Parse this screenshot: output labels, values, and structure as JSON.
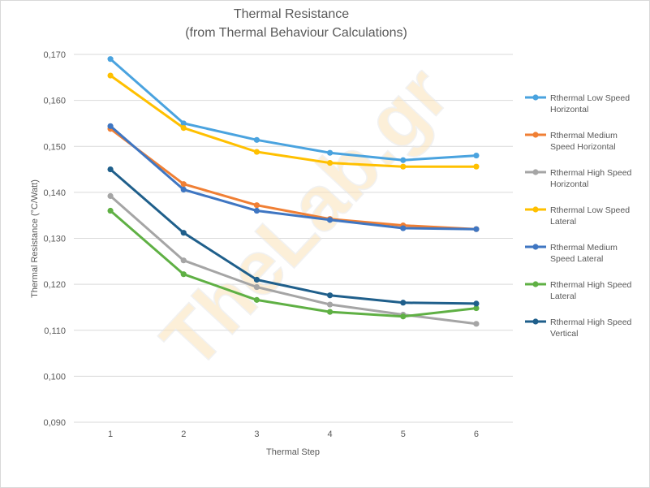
{
  "chart_data": {
    "type": "line",
    "title": "Thermal Resistance",
    "subtitle": "(from Thermal Behaviour Calculations)",
    "xlabel": "Thermal Step",
    "ylabel": "Thermal Resistance (°C/Watt)",
    "x": [
      1,
      2,
      3,
      4,
      5,
      6
    ],
    "x_tick_labels": [
      "1",
      "2",
      "3",
      "4",
      "5",
      "6"
    ],
    "ylim": [
      0.09,
      0.17
    ],
    "y_ticks": [
      0.09,
      0.1,
      0.11,
      0.12,
      0.13,
      0.14,
      0.15,
      0.16,
      0.17
    ],
    "y_tick_labels": [
      "0,090",
      "0,100",
      "0,110",
      "0,120",
      "0,130",
      "0,140",
      "0,150",
      "0,160",
      "0,170"
    ],
    "grid": "horizontal",
    "legend_position": "right",
    "series": [
      {
        "name": "Rthermal Low Speed Horizontal",
        "legend_lines": [
          "Rthermal Low Speed",
          "Horizontal"
        ],
        "color": "#4aa3df",
        "values": [
          0.169,
          0.155,
          0.1514,
          0.1486,
          0.147,
          0.148
        ]
      },
      {
        "name": "Rthermal Medium Speed Horizontal",
        "legend_lines": [
          "Rthermal Medium",
          "Speed Horizontal"
        ],
        "color": "#f07f34",
        "values": [
          0.1538,
          0.1418,
          0.1372,
          0.1342,
          0.1328,
          0.132
        ]
      },
      {
        "name": "Rthermal High Speed Horizontal",
        "legend_lines": [
          "Rthermal High Speed",
          "Horizontal"
        ],
        "color": "#a5a5a5",
        "values": [
          0.1392,
          0.1252,
          0.1194,
          0.1156,
          0.1134,
          0.1114
        ]
      },
      {
        "name": "Rthermal Low Speed Lateral",
        "legend_lines": [
          "Rthermal Low Speed",
          "Lateral"
        ],
        "color": "#ffc000",
        "values": [
          0.1654,
          0.154,
          0.1488,
          0.1464,
          0.1456,
          0.1456
        ]
      },
      {
        "name": "Rthermal Medium Speed Lateral",
        "legend_lines": [
          "Rthermal Medium",
          "Speed Lateral"
        ],
        "color": "#3f76c2",
        "values": [
          0.1544,
          0.1406,
          0.136,
          0.134,
          0.1322,
          0.132
        ]
      },
      {
        "name": "Rthermal High Speed Lateral",
        "legend_lines": [
          "Rthermal High Speed",
          "Lateral"
        ],
        "color": "#5fb044",
        "values": [
          0.136,
          0.1222,
          0.1166,
          0.114,
          0.113,
          0.1148
        ]
      },
      {
        "name": "Rthermal High Speed Vertical",
        "legend_lines": [
          "Rthermal High Speed",
          "Vertical"
        ],
        "color": "#1f5f8b",
        "values": [
          0.145,
          0.1312,
          0.121,
          0.1176,
          0.116,
          0.1158
        ]
      }
    ]
  },
  "watermark": "TheLab.gr"
}
